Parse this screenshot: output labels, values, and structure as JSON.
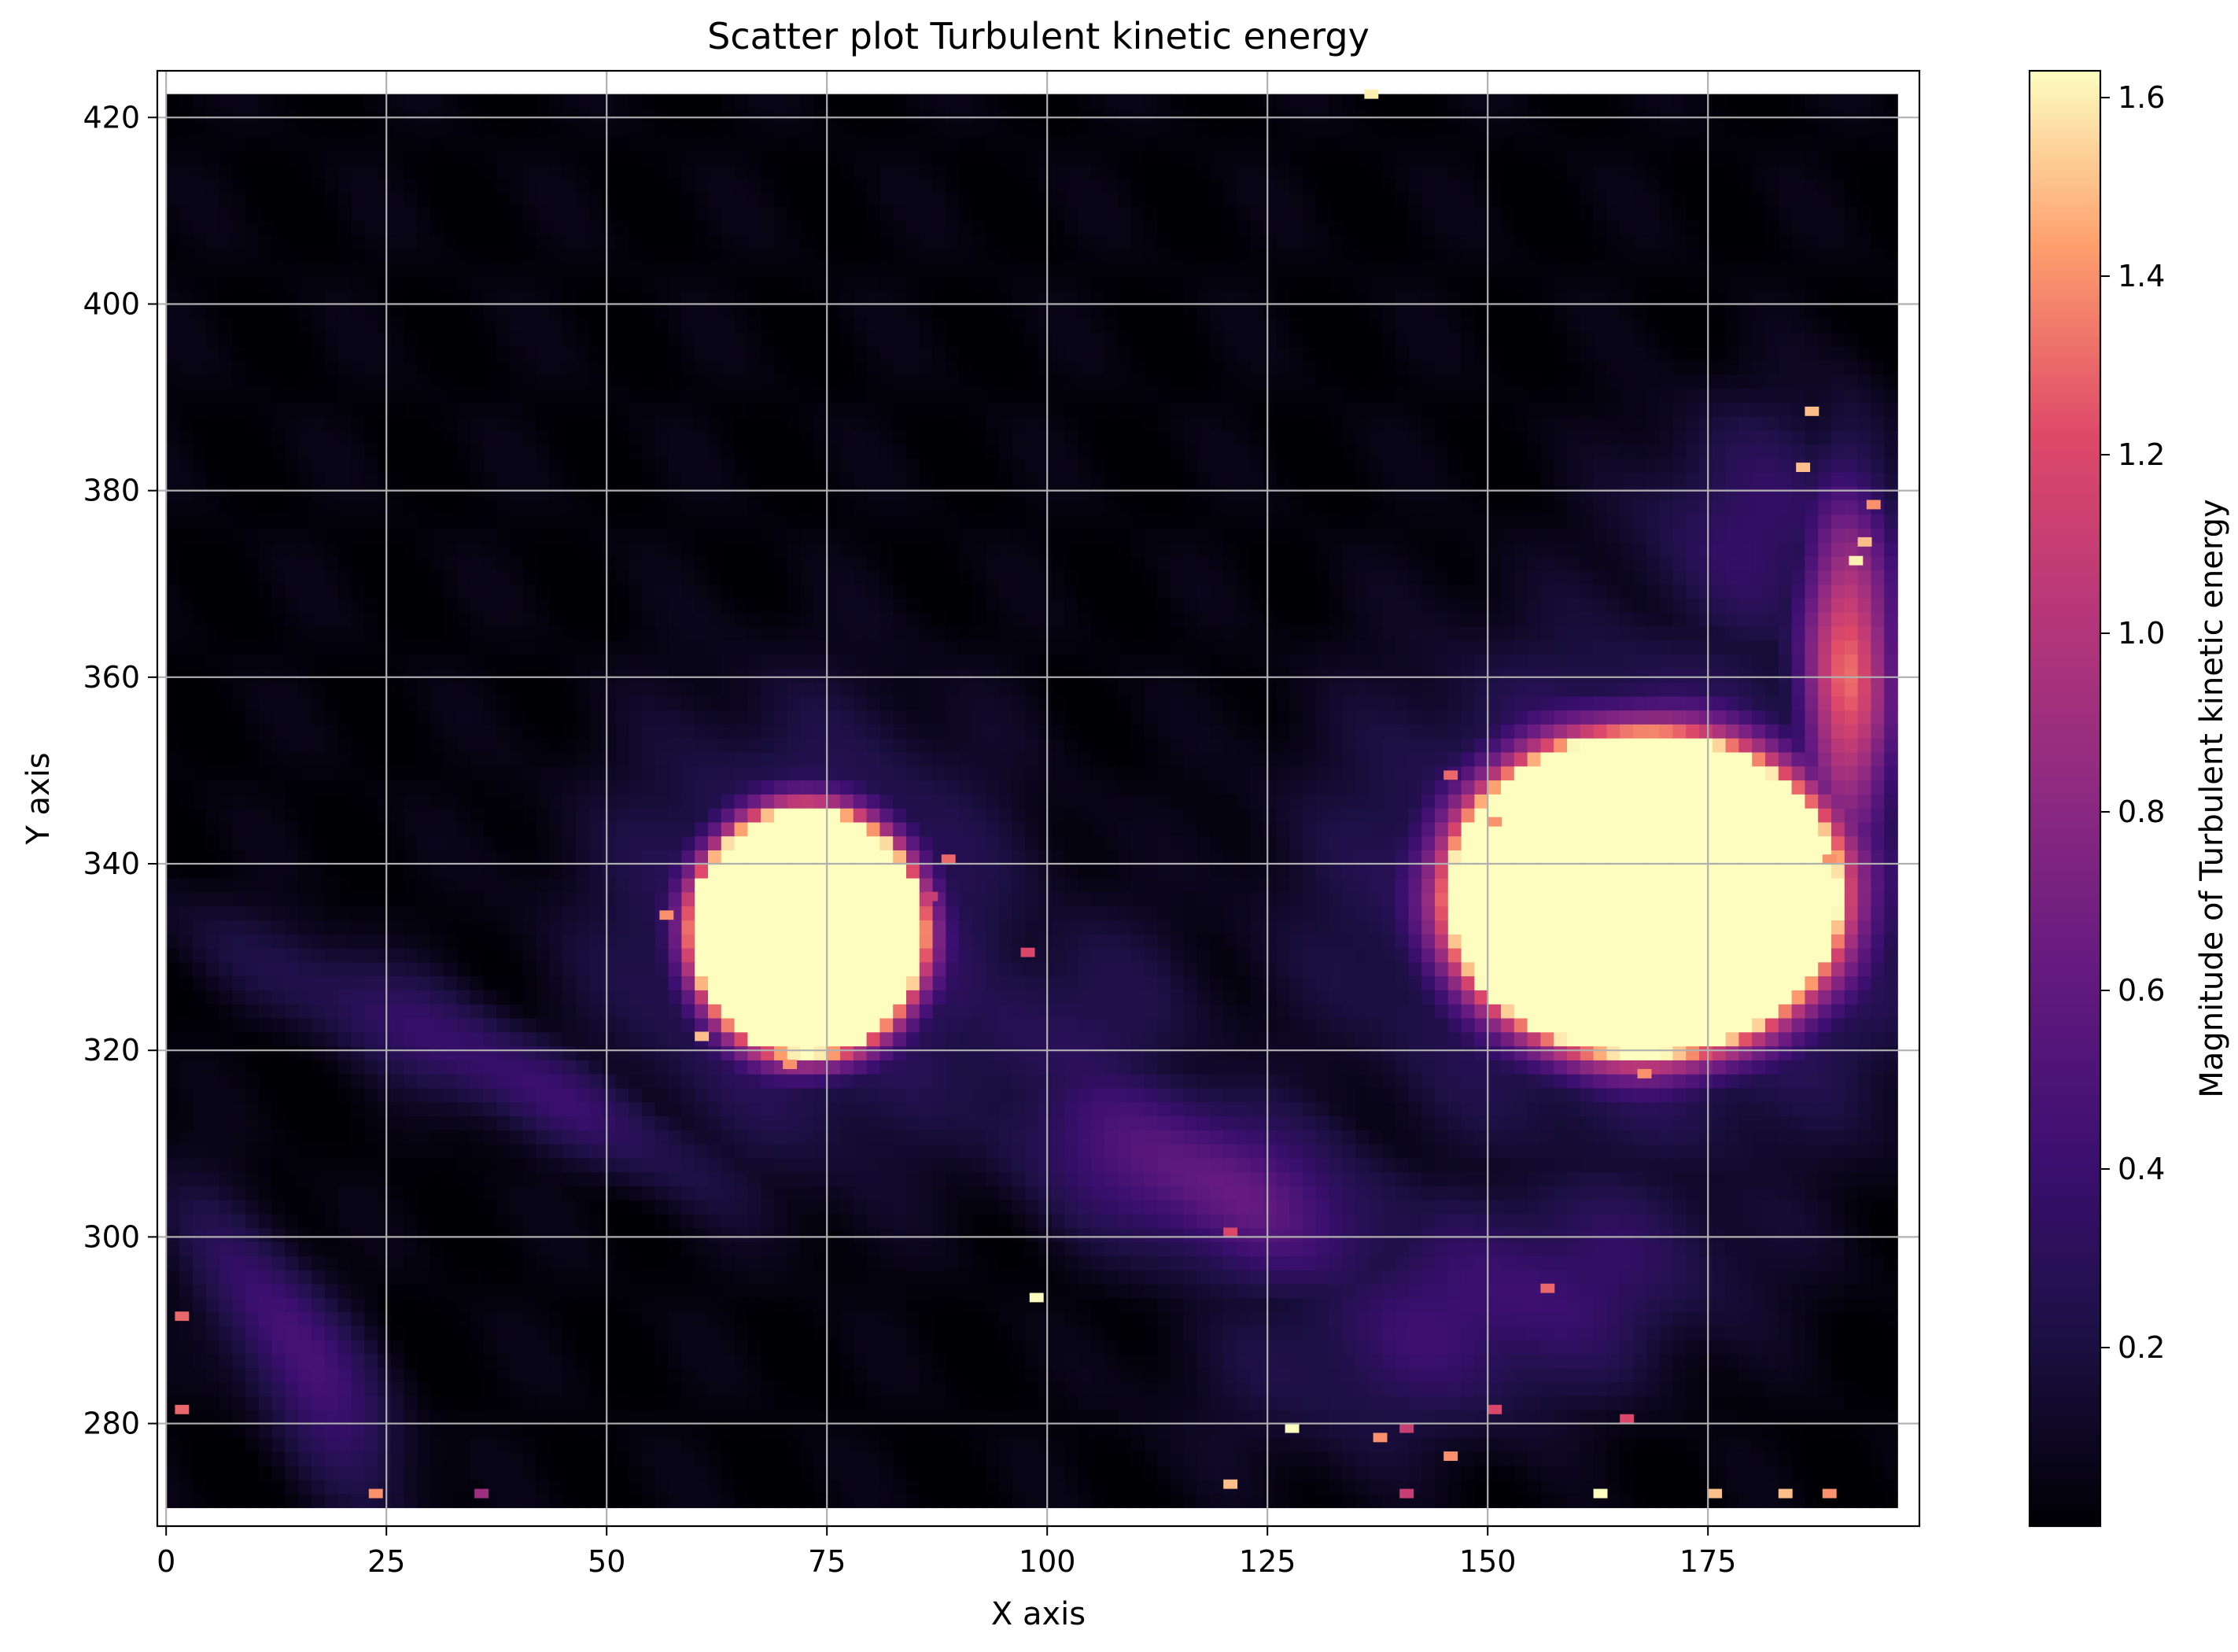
{
  "chart_data": {
    "type": "heatmap",
    "title": "Scatter plot Turbulent kinetic energy",
    "xlabel": "X axis",
    "ylabel": "Y axis",
    "xlim": [
      -1,
      199
    ],
    "ylim": [
      269,
      425
    ],
    "data_extent": {
      "x": [
        0,
        195
      ],
      "y": [
        271,
        422
      ]
    },
    "xticks": [
      0,
      25,
      50,
      75,
      100,
      125,
      150,
      175
    ],
    "yticks": [
      280,
      300,
      320,
      340,
      360,
      380,
      400,
      420
    ],
    "xtick_labels": [
      "0",
      "25",
      "50",
      "75",
      "100",
      "125",
      "150",
      "175"
    ],
    "ytick_labels": [
      "280",
      "300",
      "320",
      "340",
      "360",
      "380",
      "400",
      "420"
    ],
    "grid": true,
    "colormap": "magma",
    "colorbar": {
      "label": "Magnitude of Turbulent kinetic energy",
      "min": 0.0,
      "max": 1.63,
      "ticks": [
        0.2,
        0.4,
        0.6,
        0.8,
        1.0,
        1.2,
        1.4,
        1.6
      ],
      "tick_labels": [
        "0.2",
        "0.4",
        "0.6",
        "0.8",
        "1.0",
        "1.2",
        "1.4",
        "1.6"
      ]
    },
    "features": [
      {
        "kind": "blob",
        "cx": 72,
        "cy": 332,
        "rx": 13,
        "ry": 13,
        "peak": 1.63
      },
      {
        "kind": "blob",
        "cx": 167,
        "cy": 336,
        "rx": 22,
        "ry": 17,
        "peak": 1.63
      },
      {
        "kind": "halo",
        "cx": 72,
        "cy": 332,
        "rx": 30,
        "ry": 30,
        "peak": 0.38
      },
      {
        "kind": "halo",
        "cx": 167,
        "cy": 336,
        "rx": 42,
        "ry": 32,
        "peak": 0.5
      },
      {
        "kind": "band",
        "cx": 35,
        "cy": 318,
        "rx": 42,
        "ry": 7,
        "angle": -25,
        "peak": 0.4
      },
      {
        "kind": "band",
        "cx": 14,
        "cy": 287,
        "rx": 24,
        "ry": 8,
        "angle": -55,
        "peak": 0.48
      },
      {
        "kind": "band",
        "cx": 118,
        "cy": 305,
        "rx": 30,
        "ry": 12,
        "angle": -20,
        "peak": 0.6
      },
      {
        "kind": "band",
        "cx": 150,
        "cy": 292,
        "rx": 38,
        "ry": 16,
        "angle": 15,
        "peak": 0.42
      },
      {
        "kind": "band",
        "cx": 190,
        "cy": 360,
        "rx": 7,
        "ry": 25,
        "angle": 0,
        "peak": 1.3
      },
      {
        "kind": "band",
        "cx": 180,
        "cy": 375,
        "rx": 20,
        "ry": 18,
        "angle": 0,
        "peak": 0.35
      },
      {
        "kind": "halo",
        "cx": 100,
        "cy": 320,
        "rx": 25,
        "ry": 20,
        "peak": 0.25
      }
    ],
    "specks": [
      [
        136,
        422,
        1.6
      ],
      [
        186,
        388,
        1.5
      ],
      [
        185,
        382,
        1.5
      ],
      [
        98,
        293,
        1.63
      ],
      [
        127,
        279,
        1.63
      ],
      [
        162,
        272,
        1.63
      ],
      [
        88,
        340,
        1.3
      ],
      [
        86,
        336,
        1.1
      ],
      [
        97,
        330,
        1.2
      ],
      [
        70,
        318,
        1.4
      ],
      [
        60,
        321,
        1.5
      ],
      [
        56,
        334,
        1.4
      ],
      [
        192,
        374,
        1.5
      ],
      [
        193,
        378,
        1.4
      ],
      [
        191,
        372,
        1.6
      ],
      [
        188,
        340,
        1.4
      ],
      [
        145,
        349,
        1.3
      ],
      [
        150,
        344,
        1.4
      ],
      [
        167,
        317,
        1.4
      ],
      [
        156,
        294,
        1.3
      ],
      [
        140,
        279,
        1.1
      ],
      [
        137,
        278,
        1.4
      ],
      [
        120,
        300,
        1.2
      ],
      [
        145,
        276,
        1.4
      ],
      [
        150,
        281,
        1.2
      ],
      [
        23,
        272,
        1.4
      ],
      [
        1,
        281,
        1.3
      ],
      [
        1,
        291,
        1.3
      ],
      [
        35,
        272,
        0.9
      ],
      [
        175,
        272,
        1.5
      ],
      [
        183,
        272,
        1.5
      ],
      [
        188,
        272,
        1.4
      ],
      [
        140,
        272,
        1.1
      ],
      [
        120,
        273,
        1.5
      ],
      [
        165,
        280,
        1.2
      ]
    ]
  }
}
